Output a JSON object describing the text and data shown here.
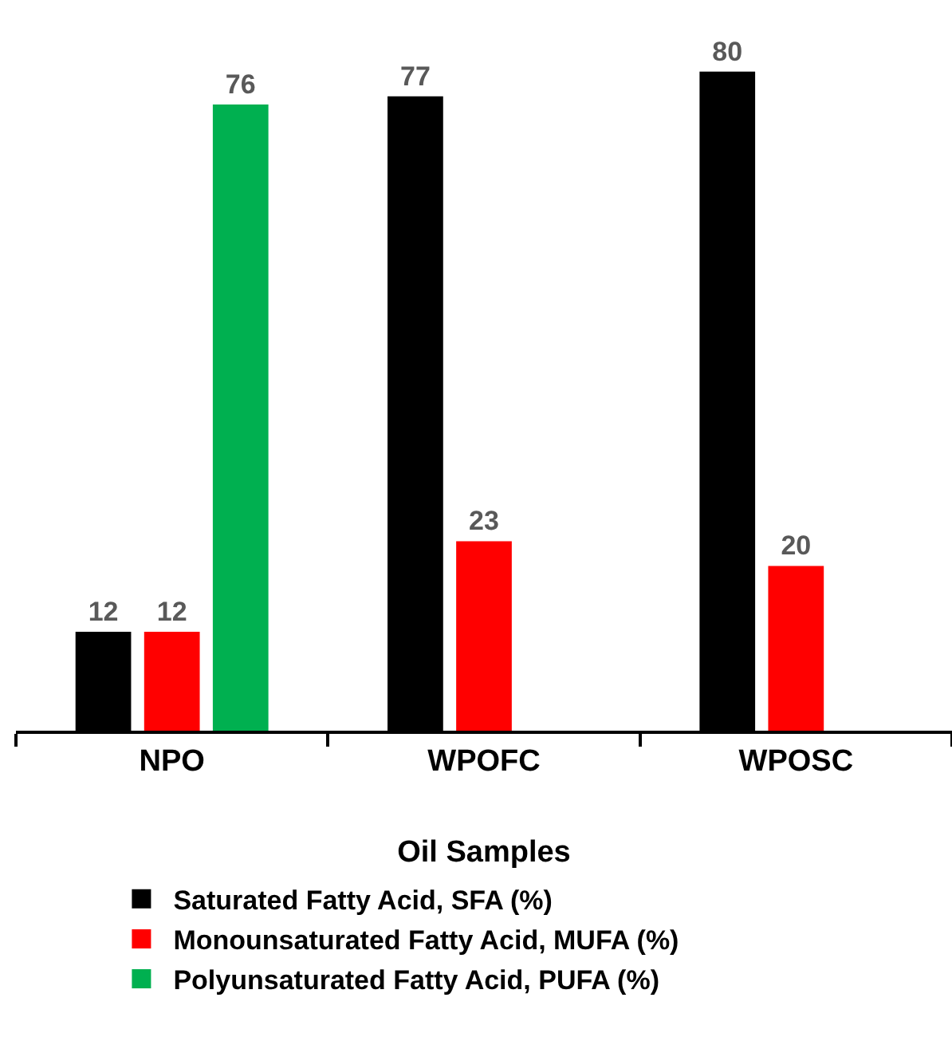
{
  "chart_data": {
    "type": "bar",
    "xlabel": "Oil Samples",
    "categories": [
      "NPO",
      "WPOFC",
      "WPOSC"
    ],
    "series": [
      {
        "name": "Saturated Fatty Acid, SFA (%)",
        "color": "#000000",
        "values": [
          12,
          77,
          80
        ]
      },
      {
        "name": "Monounsaturated Fatty Acid, MUFA (%)",
        "color": "#ff0000",
        "values": [
          12,
          23,
          20
        ]
      },
      {
        "name": "Polyunsaturated Fatty Acid, PUFA (%)",
        "color": "#00b050",
        "values": [
          76,
          null,
          null
        ]
      }
    ],
    "data_labels": true,
    "legend": "bottom"
  }
}
